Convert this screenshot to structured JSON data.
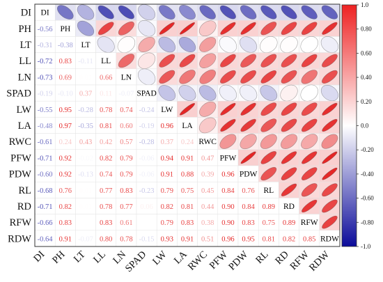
{
  "chart_data": {
    "type": "heatmap",
    "variables": [
      "DI",
      "PH",
      "LT",
      "LL",
      "LN",
      "SPAD",
      "LW",
      "LA",
      "RWC",
      "PFW",
      "PDW",
      "RL",
      "RD",
      "RFW",
      "RDW"
    ],
    "lower_values": [
      [],
      [
        -0.56
      ],
      [
        -0.31,
        -0.38
      ],
      [
        -0.72,
        0.83,
        -0.11
      ],
      [
        -0.73,
        0.69,
        0.01,
        0.66
      ],
      [
        -0.19,
        -0.1,
        0.37,
        0.11,
        -0.07
      ],
      [
        -0.55,
        0.95,
        -0.28,
        0.78,
        0.74,
        -0.24
      ],
      [
        -0.48,
        0.97,
        -0.35,
        0.81,
        0.6,
        -0.19,
        0.96
      ],
      [
        -0.61,
        0.24,
        0.43,
        0.42,
        0.57,
        -0.28,
        0.37,
        0.24
      ],
      [
        -0.71,
        0.92,
        -0.02,
        0.82,
        0.79,
        -0.06,
        0.94,
        0.91,
        0.47
      ],
      [
        -0.6,
        0.92,
        -0.13,
        0.74,
        0.79,
        -0.06,
        0.91,
        0.88,
        0.39,
        0.96
      ],
      [
        -0.68,
        0.76,
        0.01,
        0.77,
        0.83,
        -0.23,
        0.79,
        0.75,
        0.45,
        0.84,
        0.76
      ],
      [
        -0.71,
        0.82,
        0.01,
        0.78,
        0.77,
        0.06,
        0.82,
        0.81,
        0.44,
        0.9,
        0.84,
        0.89
      ],
      [
        -0.66,
        0.83,
        0.0,
        0.83,
        0.61,
        0.0,
        0.79,
        0.83,
        0.38,
        0.9,
        0.83,
        0.75,
        0.89
      ],
      [
        -0.64,
        0.91,
        -0.07,
        0.8,
        0.78,
        -0.15,
        0.93,
        0.91,
        0.51,
        0.96,
        0.95,
        0.81,
        0.82,
        0.85
      ]
    ],
    "colorbar": {
      "ticks": [
        "1.0",
        "0.80",
        "0.60",
        "0.40",
        "0.20",
        "0.0",
        "-0.20",
        "-0.40",
        "-0.60",
        "-0.80",
        "-1.0"
      ],
      "min": -1.0,
      "max": 1.0,
      "colors": {
        "negative": "#0b0b9a",
        "zero": "#ffffff",
        "positive": "#e41d1d"
      }
    },
    "xlabel": "",
    "ylabel": "",
    "title": ""
  }
}
